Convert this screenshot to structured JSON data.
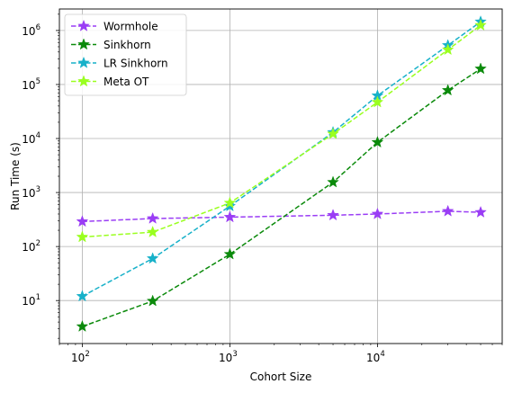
{
  "chart_data": {
    "type": "line",
    "title": "",
    "xlabel": "Cohort Size",
    "ylabel": "Run Time (s)",
    "xscale": "log",
    "yscale": "log",
    "xlim": [
      70,
      70000
    ],
    "ylim": [
      1.6,
      2500000
    ],
    "grid": true,
    "legend_position": "upper-left",
    "x": [
      100,
      300,
      1000,
      5000,
      10000,
      30000,
      50000
    ],
    "x_ticks": [
      {
        "value": 100,
        "base": "10",
        "exp": "2"
      },
      {
        "value": 1000,
        "base": "10",
        "exp": "3"
      },
      {
        "value": 10000,
        "base": "10",
        "exp": "4"
      }
    ],
    "y_ticks": [
      {
        "value": 10,
        "base": "10",
        "exp": "1"
      },
      {
        "value": 100,
        "base": "10",
        "exp": "2"
      },
      {
        "value": 1000,
        "base": "10",
        "exp": "3"
      },
      {
        "value": 10000,
        "base": "10",
        "exp": "4"
      },
      {
        "value": 100000,
        "base": "10",
        "exp": "5"
      },
      {
        "value": 1000000,
        "base": "10",
        "exp": "6"
      }
    ],
    "series": [
      {
        "name": "Wormhole",
        "color": "#9a3df5",
        "marker": "star",
        "linestyle": "dashed",
        "values": [
          290,
          330,
          350,
          380,
          400,
          450,
          430
        ]
      },
      {
        "name": "Sinkhorn",
        "color": "#0b8a0b",
        "marker": "star",
        "linestyle": "dashed",
        "values": [
          3.3,
          9.8,
          72,
          1550,
          8500,
          78000,
          195000
        ]
      },
      {
        "name": "LR Sinkhorn",
        "color": "#17b1c9",
        "marker": "star",
        "linestyle": "dashed",
        "values": [
          12,
          60,
          560,
          13000,
          62000,
          530000,
          1450000
        ]
      },
      {
        "name": "Meta OT",
        "color": "#9aff1f",
        "marker": "star",
        "linestyle": "dashed",
        "values": [
          150,
          185,
          640,
          12200,
          47000,
          440000,
          1250000
        ]
      }
    ]
  }
}
